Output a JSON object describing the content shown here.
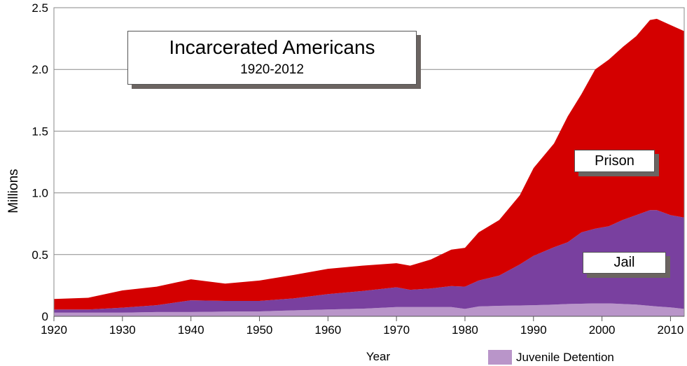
{
  "chart_data": {
    "type": "area",
    "stacked": true,
    "title": "Incarcerated Americans",
    "subtitle": "1920-2012",
    "xlabel": "Year",
    "ylabel": "Millions",
    "xlim": [
      1920,
      2012
    ],
    "ylim": [
      0,
      2.5
    ],
    "grid": true,
    "x_ticks": [
      "1920",
      "1930",
      "1940",
      "1950",
      "1960",
      "1970",
      "1980",
      "1990",
      "2000",
      "2010"
    ],
    "y_ticks": [
      "0",
      "0.5",
      "1.0",
      "1.5",
      "2.0",
      "2.5"
    ],
    "x": [
      1920,
      1925,
      1930,
      1935,
      1940,
      1945,
      1950,
      1955,
      1960,
      1965,
      1970,
      1972,
      1975,
      1978,
      1980,
      1982,
      1985,
      1988,
      1990,
      1993,
      1995,
      1997,
      1999,
      2001,
      2003,
      2005,
      2007,
      2008,
      2010,
      2012
    ],
    "series": [
      {
        "name": "Juvenile Detention",
        "color": "#b995c9",
        "values": [
          0.03,
          0.03,
          0.03,
          0.035,
          0.035,
          0.038,
          0.04,
          0.048,
          0.055,
          0.062,
          0.075,
          0.075,
          0.075,
          0.075,
          0.06,
          0.08,
          0.085,
          0.088,
          0.09,
          0.095,
          0.1,
          0.102,
          0.105,
          0.105,
          0.1,
          0.095,
          0.085,
          0.08,
          0.072,
          0.06
        ]
      },
      {
        "name": "Jail",
        "color": "#79409f",
        "values": [
          0.025,
          0.025,
          0.04,
          0.055,
          0.095,
          0.087,
          0.085,
          0.097,
          0.125,
          0.143,
          0.16,
          0.14,
          0.15,
          0.17,
          0.18,
          0.21,
          0.245,
          0.332,
          0.4,
          0.465,
          0.5,
          0.578,
          0.605,
          0.625,
          0.68,
          0.725,
          0.775,
          0.78,
          0.748,
          0.74
        ]
      },
      {
        "name": "Prison",
        "color": "#d40000",
        "values": [
          0.085,
          0.095,
          0.14,
          0.15,
          0.17,
          0.14,
          0.165,
          0.19,
          0.205,
          0.205,
          0.195,
          0.195,
          0.235,
          0.295,
          0.315,
          0.39,
          0.45,
          0.56,
          0.71,
          0.84,
          1.02,
          1.12,
          1.29,
          1.35,
          1.4,
          1.45,
          1.54,
          1.55,
          1.54,
          1.51
        ]
      }
    ],
    "annotations": [
      "Prison",
      "Jail"
    ],
    "legend": {
      "position": "bottom-right",
      "entries": [
        "Juvenile Detention"
      ]
    }
  }
}
